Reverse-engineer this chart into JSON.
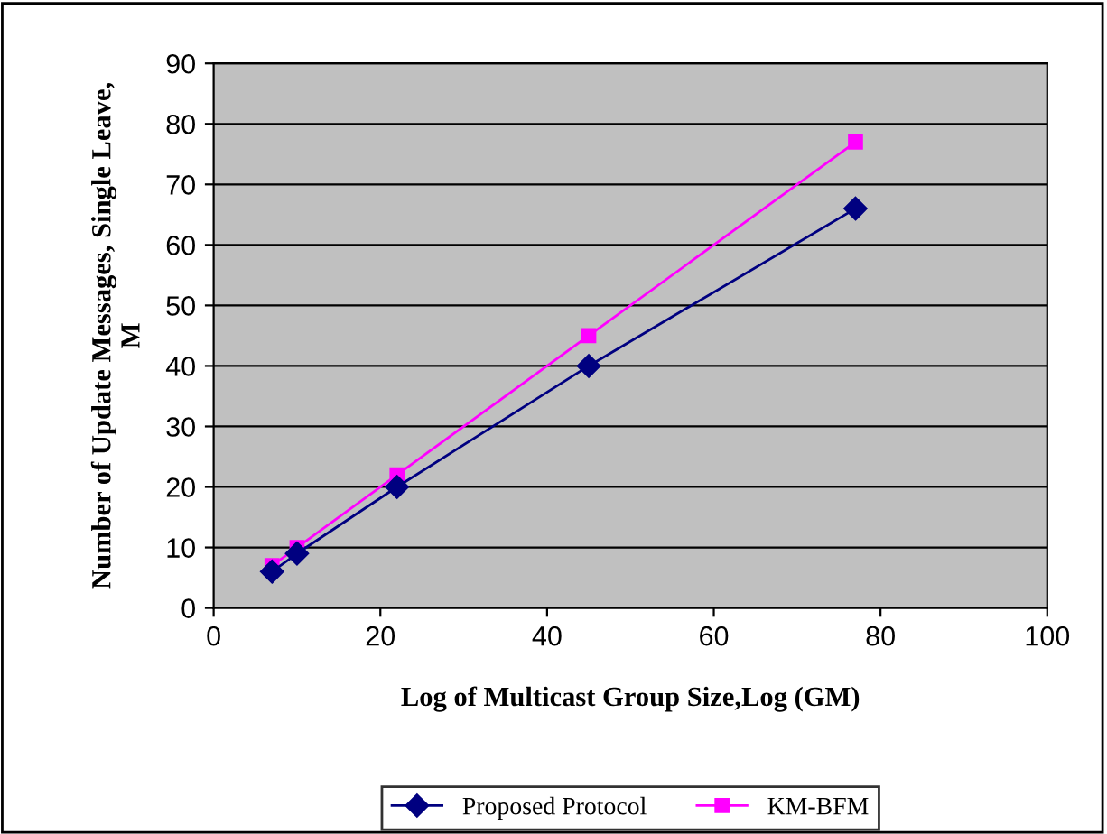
{
  "chart_data": {
    "type": "line",
    "xlabel": "Log of Multicast Group Size,Log (GM)",
    "ylabel": "Number of Update Messages, Single Leave,\nM",
    "xlim": [
      0,
      100
    ],
    "xticks": [
      0,
      20,
      40,
      60,
      80,
      100
    ],
    "ylim": [
      0,
      90
    ],
    "yticks": [
      0,
      10,
      20,
      30,
      40,
      50,
      60,
      70,
      80,
      90
    ],
    "grid": "y",
    "legend": "bottom",
    "series": [
      {
        "name": "Proposed Protocol",
        "color": "#000080",
        "marker": "diamond",
        "x": [
          7,
          10,
          22,
          45,
          77
        ],
        "values": [
          6,
          9,
          20,
          40,
          66
        ]
      },
      {
        "name": "KM-BFM",
        "color": "#ff00ff",
        "marker": "square",
        "x": [
          7,
          10,
          22,
          45,
          77
        ],
        "values": [
          7,
          10,
          22,
          45,
          77
        ]
      }
    ]
  }
}
